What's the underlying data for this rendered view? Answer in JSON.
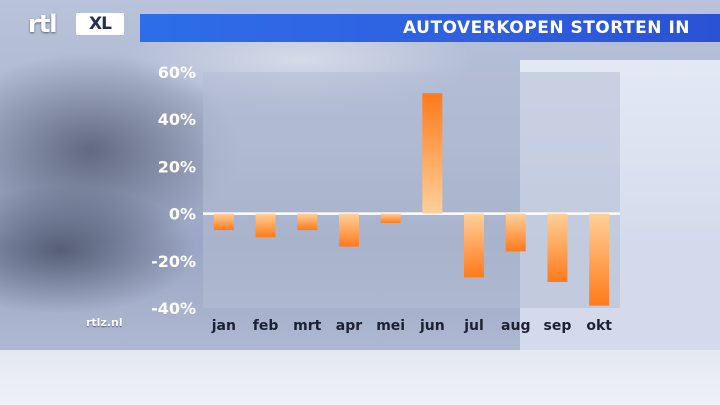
{
  "header": {
    "title": "AUTOVERKOPEN STORTEN IN"
  },
  "logo": {
    "rtl": "rtl",
    "xl": "XL"
  },
  "watermark": "rtlz.nl",
  "colors": {
    "title_bar": "#2d6ee8",
    "bar_top": "#ff7a1a",
    "bar_bottom": "#ffd09a",
    "plot_bg": "#b5bdd4"
  },
  "chart_data": {
    "type": "bar",
    "categories": [
      "jan",
      "feb",
      "mrt",
      "apr",
      "mei",
      "jun",
      "jul",
      "aug",
      "sep",
      "okt"
    ],
    "values": [
      -7,
      -10,
      -7,
      -14,
      -4,
      51,
      -27,
      -16,
      -29,
      -39
    ],
    "ylim": [
      -40,
      60
    ],
    "yticks": [
      60,
      40,
      20,
      0,
      -20,
      -40
    ],
    "ytick_labels": [
      "60%",
      "40%",
      "20%",
      "0%",
      "-20%",
      "-40%"
    ],
    "grid": false
  }
}
